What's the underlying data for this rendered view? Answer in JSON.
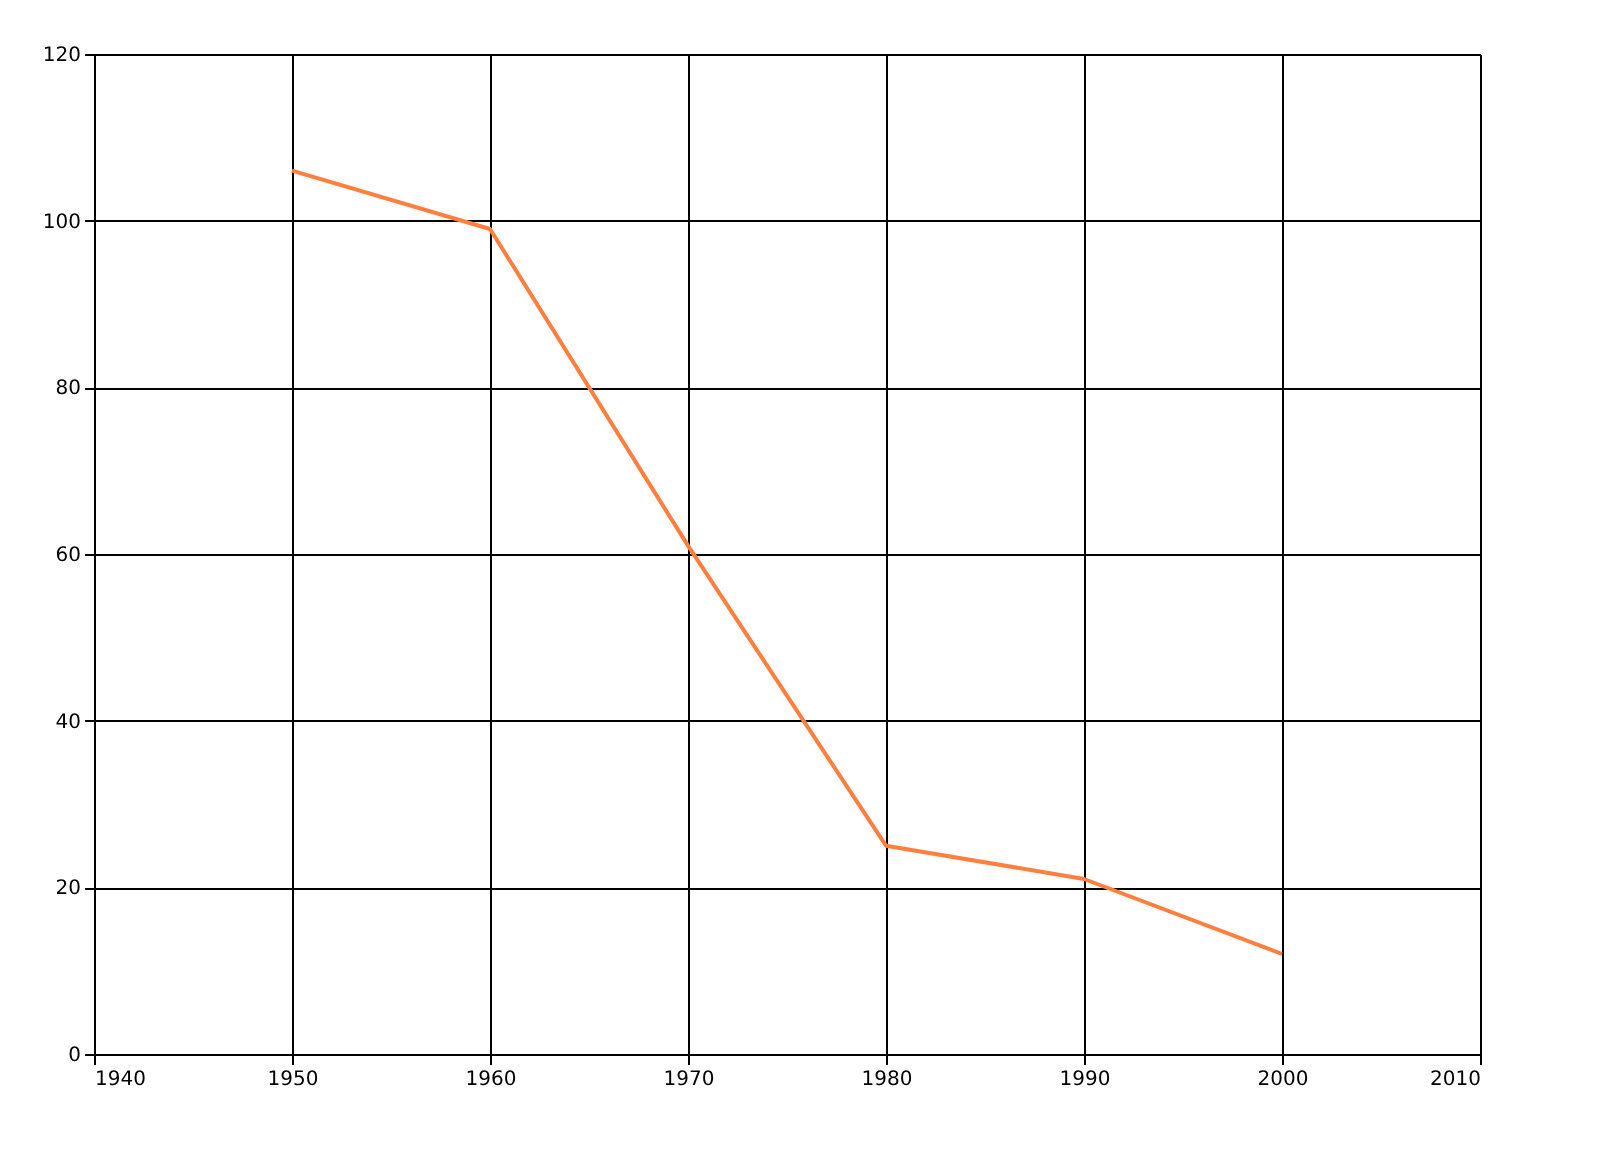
{
  "chart_data": {
    "type": "line",
    "x": [
      1950,
      1960,
      1970,
      1980,
      1990,
      2000
    ],
    "series": [
      {
        "color": "#ff7f3f",
        "values": [
          106,
          99,
          61,
          25,
          21,
          12
        ]
      }
    ],
    "xlim": [
      1940,
      2010
    ],
    "xticks": [
      1940,
      1950,
      1960,
      1970,
      1980,
      1990,
      2000,
      2010
    ],
    "ylim": [
      0,
      120
    ],
    "yticks": [
      0,
      20,
      40,
      60,
      80,
      100,
      120
    ],
    "grid": true,
    "marker": "none",
    "line_style": "solid"
  }
}
